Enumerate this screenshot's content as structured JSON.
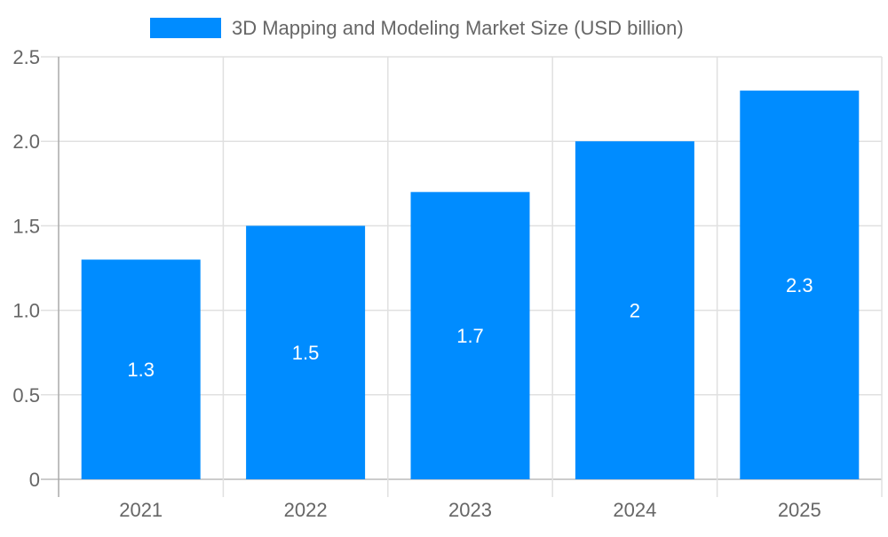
{
  "chart_data": {
    "type": "bar",
    "categories": [
      "2021",
      "2022",
      "2023",
      "2024",
      "2025"
    ],
    "series": [
      {
        "name": "3D Mapping and Modeling Market Size (USD billion)",
        "values": [
          1.3,
          1.5,
          1.7,
          2,
          2.3
        ],
        "color": "#008cff"
      }
    ],
    "data_labels": [
      "1.3",
      "1.5",
      "1.7",
      "2",
      "2.3"
    ],
    "yticks": [
      "0",
      "0.5",
      "1.0",
      "1.5",
      "2.0",
      "2.5"
    ],
    "ylim": [
      0,
      2.5
    ],
    "grid": true,
    "legend_position": "top",
    "title": "",
    "xlabel": "",
    "ylabel": ""
  }
}
